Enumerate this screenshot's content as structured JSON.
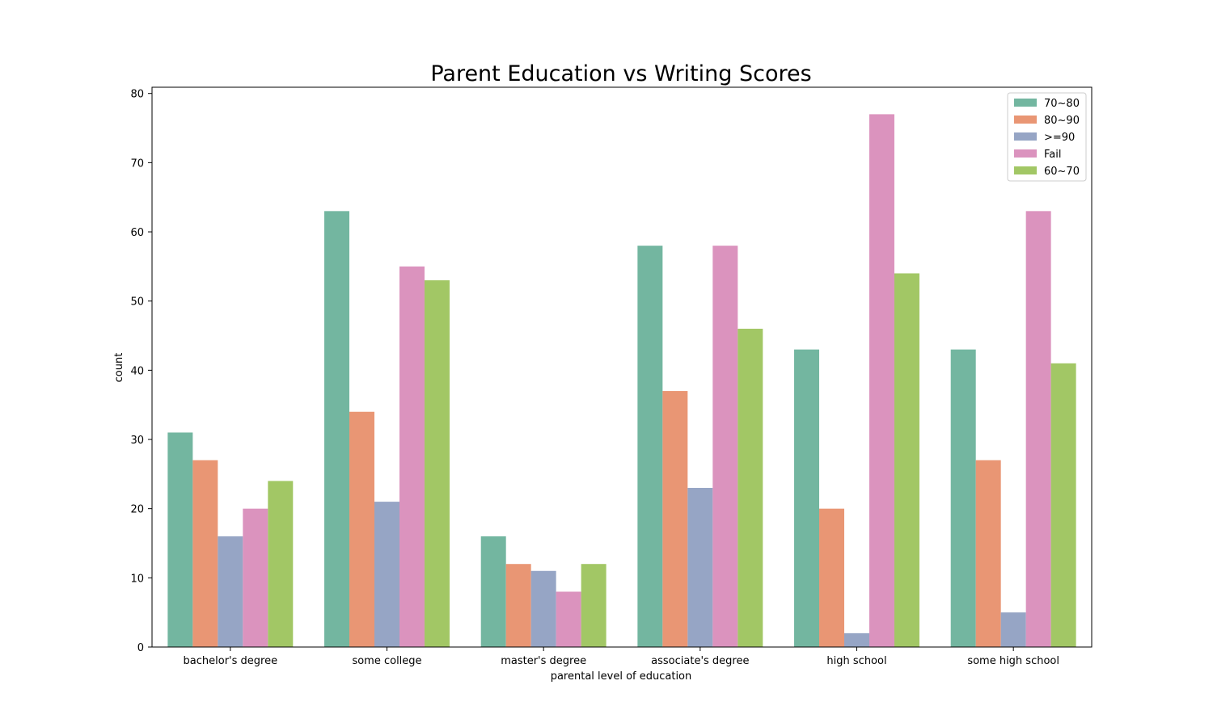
{
  "chart_data": {
    "type": "bar",
    "title": "Parent Education vs Writing Scores",
    "xlabel": "parental level of education",
    "ylabel": "count",
    "ylim": [
      0,
      80
    ],
    "yticks": [
      0,
      10,
      20,
      30,
      40,
      50,
      60,
      70,
      80
    ],
    "categories": [
      "bachelor's degree",
      "some college",
      "master's degree",
      "associate's degree",
      "high school",
      "some high school"
    ],
    "series": [
      {
        "name": "70~80",
        "color": "#73b6a0",
        "values": [
          31,
          63,
          16,
          58,
          43,
          43
        ]
      },
      {
        "name": "80~90",
        "color": "#e99674",
        "values": [
          27,
          34,
          12,
          37,
          20,
          27
        ]
      },
      {
        "name": ">=90",
        "color": "#96a5c5",
        "values": [
          16,
          21,
          11,
          23,
          2,
          5
        ]
      },
      {
        "name": "Fail",
        "color": "#db93be",
        "values": [
          20,
          55,
          8,
          58,
          77,
          63
        ]
      },
      {
        "name": "60~70",
        "color": "#a2c765",
        "values": [
          24,
          53,
          12,
          46,
          54,
          41
        ]
      }
    ],
    "legend": "top-right",
    "grid": false
  }
}
